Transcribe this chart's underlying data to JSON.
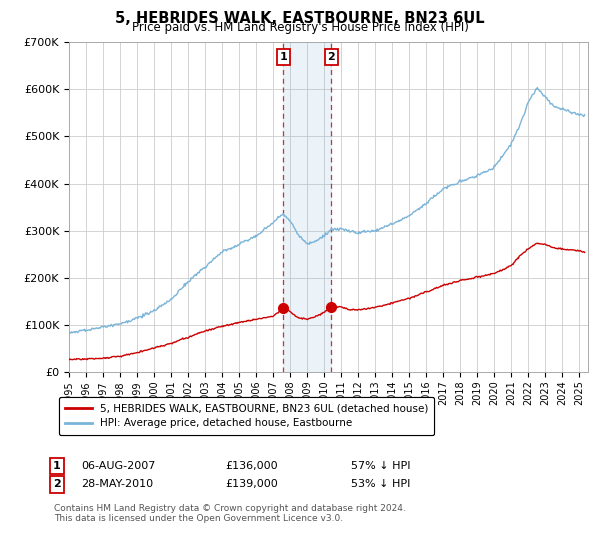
{
  "title": "5, HEBRIDES WALK, EASTBOURNE, BN23 6UL",
  "subtitle": "Price paid vs. HM Land Registry's House Price Index (HPI)",
  "ylim": [
    0,
    700000
  ],
  "xlim_start": 1995.0,
  "xlim_end": 2025.5,
  "hpi_color": "#7ab4d8",
  "price_color": "#cc0000",
  "sale1_date": 2007.59,
  "sale1_price": 136000,
  "sale2_date": 2010.41,
  "sale2_price": 139000,
  "legend_line1": "5, HEBRIDES WALK, EASTBOURNE, BN23 6UL (detached house)",
  "legend_line2": "HPI: Average price, detached house, Eastbourne",
  "footnote": "Contains HM Land Registry data © Crown copyright and database right 2024.\nThis data is licensed under the Open Government Licence v3.0.",
  "background_color": "#ffffff",
  "plot_bg_color": "#ffffff",
  "grid_color": "#cccccc"
}
